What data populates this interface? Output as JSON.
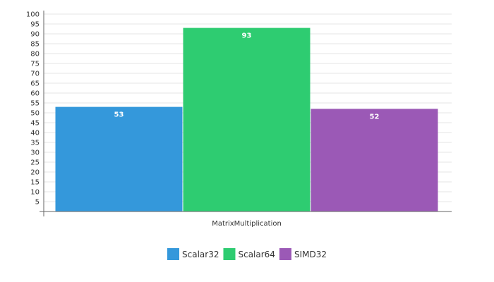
{
  "chart_data": {
    "type": "bar",
    "categories": [
      "MatrixMultiplication"
    ],
    "series": [
      {
        "name": "Scalar32",
        "values": [
          53
        ],
        "color": "#3498db"
      },
      {
        "name": "Scalar64",
        "values": [
          93
        ],
        "color": "#2ecc71"
      },
      {
        "name": "SIMD32",
        "values": [
          52
        ],
        "color": "#9b59b6"
      }
    ],
    "title": "",
    "xlabel": "",
    "ylabel": "",
    "ylim": [
      0,
      100
    ],
    "ytick_step": 5,
    "grid": true,
    "legend_position": "bottom",
    "data_labels": true
  }
}
